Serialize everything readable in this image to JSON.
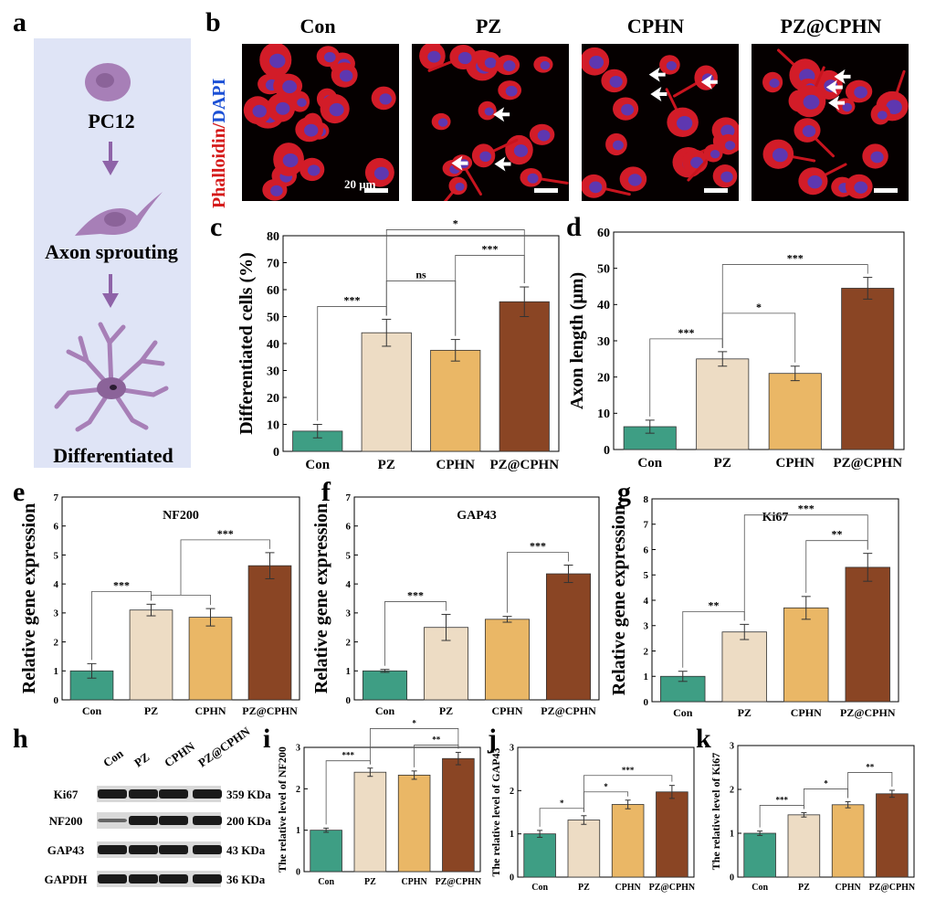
{
  "panel_letters": [
    "a",
    "b",
    "c",
    "d",
    "e",
    "f",
    "g",
    "h",
    "i",
    "j",
    "k"
  ],
  "schematic": {
    "steps": [
      "PC12",
      "Axon sprouting",
      "Differentiated"
    ],
    "colors": {
      "bg": "#dfe4f6",
      "cell": "#a77fb7",
      "arrow": "#8e63a8"
    }
  },
  "micrographs": {
    "columns": [
      "Con",
      "PZ",
      "CPHN",
      "PZ@CPHN"
    ],
    "side_label_red": "Phalloidin",
    "side_label_slash": "/",
    "side_label_blue": "DAPI",
    "scale_bar": "20 μm"
  },
  "western_blot": {
    "lanes": [
      "Con",
      "PZ",
      "CPHN",
      "PZ@CPHN"
    ],
    "rows": [
      {
        "name": "Ki67",
        "size": "359 KDa"
      },
      {
        "name": "NF200",
        "size": "200 KDa"
      },
      {
        "name": "GAP43",
        "size": "43 KDa"
      },
      {
        "name": "GAPDH",
        "size": "36 KDa"
      }
    ]
  },
  "colors": {
    "Con": "#3e9e84",
    "PZ": "#eddcc4",
    "CPHN": "#eab766",
    "PZ@CPHN": "#8a4524"
  },
  "chart_data": [
    {
      "id": "c",
      "type": "bar",
      "categories": [
        "Con",
        "PZ",
        "CPHN",
        "PZ@CPHN"
      ],
      "values": [
        7.5,
        44,
        37.5,
        55.5
      ],
      "errors": [
        2.5,
        5,
        4,
        5.5
      ],
      "ylabel": "Differentiated cells (%)",
      "ylim": [
        0,
        80
      ],
      "yticks": [
        0,
        10,
        20,
        30,
        40,
        50,
        60,
        70,
        80
      ],
      "title": "",
      "sig": [
        {
          "a": 0,
          "b": 1,
          "label": "***"
        },
        {
          "a": 1,
          "b": 2,
          "label": "ns"
        },
        {
          "a": 2,
          "b": 3,
          "label": "***"
        },
        {
          "a": 1,
          "b": 3,
          "label": "*"
        }
      ]
    },
    {
      "id": "d",
      "type": "bar",
      "categories": [
        "Con",
        "PZ",
        "CPHN",
        "PZ@CPHN"
      ],
      "values": [
        6.3,
        25,
        21,
        44.5
      ],
      "errors": [
        1.8,
        2,
        2,
        3
      ],
      "ylabel": "Axon length (μm)",
      "ylim": [
        0,
        60
      ],
      "yticks": [
        0,
        10,
        20,
        30,
        40,
        50,
        60
      ],
      "title": "",
      "sig": [
        {
          "a": 0,
          "b": 1,
          "label": "***"
        },
        {
          "a": 1,
          "b": 2,
          "label": "*"
        },
        {
          "a": 1,
          "b": 3,
          "label": "***"
        }
      ]
    },
    {
      "id": "e",
      "type": "bar",
      "categories": [
        "Con",
        "PZ",
        "CPHN",
        "PZ@CPHN"
      ],
      "values": [
        1,
        3.1,
        2.85,
        4.63
      ],
      "errors": [
        0.25,
        0.2,
        0.3,
        0.45
      ],
      "ylabel": "Relative gene expression",
      "ylim": [
        0,
        7
      ],
      "yticks": [
        0,
        1,
        2,
        3,
        4,
        5,
        6,
        7
      ],
      "title": "NF200",
      "sig": [
        {
          "a": 0,
          "b": 1,
          "label": "***"
        },
        {
          "a": 1,
          "b": 3,
          "label": "***",
          "group": true
        }
      ]
    },
    {
      "id": "f",
      "type": "bar",
      "categories": [
        "Con",
        "PZ",
        "CPHN",
        "PZ@CPHN"
      ],
      "values": [
        1,
        2.5,
        2.78,
        4.35
      ],
      "errors": [
        0.05,
        0.45,
        0.1,
        0.3
      ],
      "ylabel": "Relative gene expression",
      "ylim": [
        0,
        7
      ],
      "yticks": [
        0,
        1,
        2,
        3,
        4,
        5,
        6,
        7
      ],
      "title": "GAP43",
      "sig": [
        {
          "a": 0,
          "b": 1,
          "label": "***"
        },
        {
          "a": 2,
          "b": 3,
          "label": "***"
        }
      ]
    },
    {
      "id": "g",
      "type": "bar",
      "categories": [
        "Con",
        "PZ",
        "CPHN",
        "PZ@CPHN"
      ],
      "values": [
        1,
        2.75,
        3.7,
        5.3
      ],
      "errors": [
        0.2,
        0.3,
        0.45,
        0.55
      ],
      "ylabel": "Relative gene expression",
      "ylim": [
        0,
        8
      ],
      "yticks": [
        0,
        1,
        2,
        3,
        4,
        5,
        6,
        7,
        8
      ],
      "title": "Ki67",
      "sig": [
        {
          "a": 0,
          "b": 1,
          "label": "**"
        },
        {
          "a": 2,
          "b": 3,
          "label": "**"
        },
        {
          "a": 1,
          "b": 3,
          "label": "***"
        }
      ]
    },
    {
      "id": "i",
      "type": "bar",
      "categories": [
        "Con",
        "PZ",
        "CPHN",
        "PZ@CPHN"
      ],
      "values": [
        1,
        2.4,
        2.33,
        2.73
      ],
      "errors": [
        0.05,
        0.1,
        0.1,
        0.15
      ],
      "ylabel": "The relative level of NF200",
      "ylim": [
        0,
        3
      ],
      "yticks": [
        0,
        1,
        2,
        3
      ],
      "title": "",
      "sig": [
        {
          "a": 0,
          "b": 1,
          "label": "***"
        },
        {
          "a": 2,
          "b": 3,
          "label": "**"
        },
        {
          "a": 1,
          "b": 3,
          "label": "*"
        }
      ]
    },
    {
      "id": "j",
      "type": "bar",
      "categories": [
        "Con",
        "PZ",
        "CPHN",
        "PZ@CPHN"
      ],
      "values": [
        1,
        1.32,
        1.68,
        1.97
      ],
      "errors": [
        0.08,
        0.1,
        0.1,
        0.15
      ],
      "ylabel": "The relative level of GAP43",
      "ylim": [
        0,
        3
      ],
      "yticks": [
        0,
        1,
        2,
        3
      ],
      "title": "",
      "sig": [
        {
          "a": 0,
          "b": 1,
          "label": "*"
        },
        {
          "a": 1,
          "b": 2,
          "label": "*"
        },
        {
          "a": 1,
          "b": 3,
          "label": "***"
        }
      ]
    },
    {
      "id": "k",
      "type": "bar",
      "categories": [
        "Con",
        "PZ",
        "CPHN",
        "PZ@CPHN"
      ],
      "values": [
        1,
        1.42,
        1.65,
        1.9
      ],
      "errors": [
        0.05,
        0.05,
        0.07,
        0.08
      ],
      "ylabel": "The relative level of Ki67",
      "ylim": [
        0,
        3
      ],
      "yticks": [
        0,
        1,
        2,
        3
      ],
      "title": "",
      "sig": [
        {
          "a": 0,
          "b": 1,
          "label": "***"
        },
        {
          "a": 1,
          "b": 2,
          "label": "*"
        },
        {
          "a": 2,
          "b": 3,
          "label": "**"
        }
      ]
    }
  ]
}
